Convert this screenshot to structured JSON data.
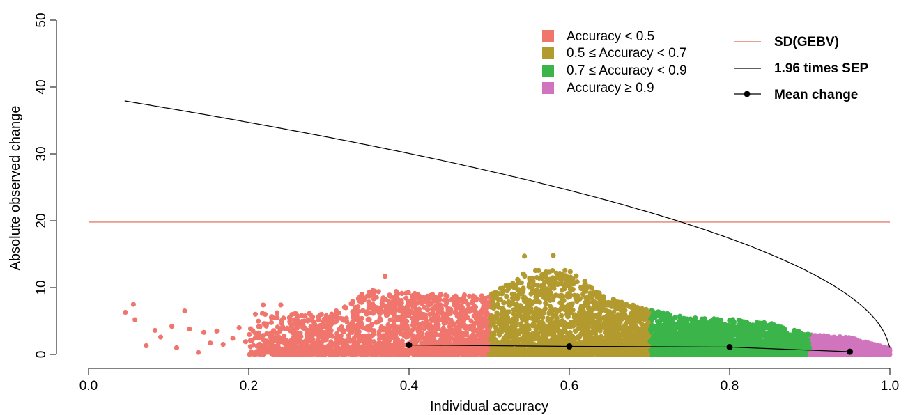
{
  "chart_data": {
    "type": "scatter",
    "title": "",
    "xlabel": "Individual accuracy",
    "ylabel": "Absolute observed change",
    "xlim": [
      0.0,
      1.0
    ],
    "ylim": [
      0,
      50
    ],
    "x_ticks": [
      "0.0",
      "0.2",
      "0.4",
      "0.6",
      "0.8",
      "1.0"
    ],
    "y_ticks": [
      "0",
      "10",
      "20",
      "30",
      "40",
      "50"
    ],
    "grid": false,
    "legend_position": "top-right",
    "groups": [
      {
        "name": "Accuracy < 0.5",
        "color": "#F0766D",
        "range": [
          0.0,
          0.5
        ]
      },
      {
        "name": "0.5 ≤ Accuracy < 0.7",
        "color": "#B39A2E",
        "range": [
          0.5,
          0.7
        ]
      },
      {
        "name": "0.7 ≤ Accuracy < 0.9",
        "color": "#3BB54A",
        "range": [
          0.7,
          0.9
        ]
      },
      {
        "name": "Accuracy ≥ 0.9",
        "color": "#D074BE",
        "range": [
          0.9,
          1.0
        ]
      }
    ],
    "reference_lines": [
      {
        "name": "SD(GEBV)",
        "color": "#E4806B",
        "y": 19.8
      },
      {
        "name": "1.96 times SEP",
        "color": "#000000",
        "curve": "y = 1.96 * 19.8 * sqrt(1 - x)"
      }
    ],
    "mean_change": {
      "name": "Mean change",
      "color": "#000000",
      "x": [
        0.4,
        0.6,
        0.8,
        0.95
      ],
      "y": [
        1.4,
        1.2,
        1.1,
        0.4
      ]
    },
    "scatter_envelope": {
      "x": [
        0.05,
        0.1,
        0.15,
        0.2,
        0.25,
        0.3,
        0.35,
        0.4,
        0.45,
        0.5,
        0.55,
        0.6,
        0.65,
        0.7,
        0.75,
        0.8,
        0.85,
        0.9,
        0.95,
        1.0
      ],
      "y_max": [
        7.5,
        6.5,
        4.0,
        7.5,
        7.5,
        7.0,
        11.7,
        11.0,
        10.5,
        10.5,
        14.8,
        14.8,
        10.0,
        7.8,
        6.5,
        6.2,
        5.5,
        3.5,
        3.0,
        1.0
      ]
    },
    "outlier_points": [
      {
        "x": 0.046,
        "y": 6.3
      },
      {
        "x": 0.056,
        "y": 7.5
      },
      {
        "x": 0.058,
        "y": 5.2
      },
      {
        "x": 0.072,
        "y": 1.3
      },
      {
        "x": 0.083,
        "y": 3.6
      },
      {
        "x": 0.09,
        "y": 2.6
      },
      {
        "x": 0.104,
        "y": 4.2
      },
      {
        "x": 0.11,
        "y": 1.0
      },
      {
        "x": 0.12,
        "y": 6.5
      },
      {
        "x": 0.126,
        "y": 3.8
      },
      {
        "x": 0.137,
        "y": 0.3
      },
      {
        "x": 0.144,
        "y": 3.3
      },
      {
        "x": 0.152,
        "y": 1.7
      },
      {
        "x": 0.16,
        "y": 3.5
      },
      {
        "x": 0.168,
        "y": 1.5
      },
      {
        "x": 0.18,
        "y": 2.4
      },
      {
        "x": 0.188,
        "y": 4.0
      },
      {
        "x": 0.196,
        "y": 1.9
      },
      {
        "x": 0.208,
        "y": 3.2
      },
      {
        "x": 0.218,
        "y": 7.4
      },
      {
        "x": 0.228,
        "y": 2.2
      },
      {
        "x": 0.24,
        "y": 7.4
      },
      {
        "x": 0.544,
        "y": 14.7
      },
      {
        "x": 0.58,
        "y": 14.8
      },
      {
        "x": 0.37,
        "y": 11.7
      },
      {
        "x": 0.595,
        "y": 11.8
      }
    ]
  }
}
